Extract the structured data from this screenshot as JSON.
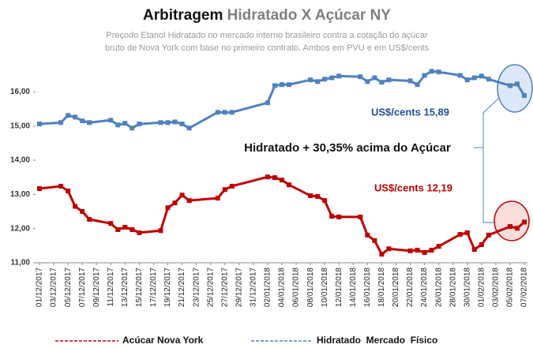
{
  "chart_data": {
    "type": "line",
    "title": "Arbitragem",
    "title_2": "Hidratado X Açúcar NY",
    "subtitle": [
      "Preçodo Etanol Hidratado no mercado interno brasileiro  contra a cotação do açúcar",
      "bruto de Nova York  com base no primeiro contrato. Ambos em PVU e em US$/cents"
    ],
    "x": [
      "01/12/2017",
      "04/12/2017",
      "05/12/2017",
      "06/12/2017",
      "07/12/2017",
      "08/12/2017",
      "11/12/2017",
      "12/12/2017",
      "13/12/2017",
      "14/12/2017",
      "15/12/2017",
      "18/12/2017",
      "19/12/2017",
      "20/12/2017",
      "21/12/2017",
      "22/12/2017",
      "26/12/2017",
      "27/12/2017",
      "28/12/2017",
      "02/01/2018",
      "03/01/2018",
      "04/01/2018",
      "05/01/2018",
      "08/01/2018",
      "09/01/2018",
      "10/01/2018",
      "11/01/2018",
      "12/01/2018",
      "15/01/2018",
      "16/01/2018",
      "17/01/2018",
      "18/01/2018",
      "19/01/2018",
      "22/01/2018",
      "23/01/2018",
      "24/01/2018",
      "25/01/2018",
      "26/01/2018",
      "29/01/2018",
      "30/01/2018",
      "31/01/2018",
      "01/02/2018",
      "02/02/2018",
      "05/02/2018",
      "06/02/2018",
      "07/02/2018"
    ],
    "xlim": [
      "01/12/2017",
      "07/02/2018"
    ],
    "xticks": [
      "01/12/2017",
      "03/12/2017",
      "05/12/2017",
      "07/12/2017",
      "09/12/2017",
      "11/12/2017",
      "13/12/2017",
      "15/12/2017",
      "17/12/2017",
      "19/12/2017",
      "21/12/2017",
      "23/12/2017",
      "25/12/2017",
      "27/12/2017",
      "29/12/2017",
      "31/12/2017",
      "02/01/2018",
      "04/01/2018",
      "06/01/2018",
      "08/01/2018",
      "10/01/2018",
      "12/01/2018",
      "14/01/2018",
      "16/01/2018",
      "18/01/2018",
      "20/01/2018",
      "22/01/2018",
      "24/01/2018",
      "26/01/2018",
      "28/01/2018",
      "30/01/2018",
      "01/02/2018",
      "03/02/2018",
      "05/02/2018",
      "07/02/2018"
    ],
    "series": [
      {
        "name": "Hidratado  Mercado  Físico",
        "color": "#4f81bd",
        "values": [
          15.06,
          15.1,
          15.31,
          15.26,
          15.15,
          15.1,
          15.17,
          15.03,
          15.08,
          14.94,
          15.06,
          15.1,
          15.1,
          15.12,
          15.06,
          14.94,
          15.4,
          15.4,
          15.4,
          15.68,
          16.18,
          16.21,
          16.21,
          16.35,
          16.3,
          16.37,
          16.41,
          16.46,
          16.44,
          16.3,
          16.41,
          16.28,
          16.35,
          16.32,
          16.21,
          16.48,
          16.6,
          16.58,
          16.48,
          16.35,
          16.41,
          16.46,
          16.37,
          16.18,
          16.23,
          15.89
        ]
      },
      {
        "name": "Acúcar Nova York",
        "color": "#c00000",
        "values": [
          13.17,
          13.24,
          13.1,
          12.65,
          12.5,
          12.27,
          12.15,
          11.97,
          12.04,
          11.97,
          11.88,
          11.94,
          12.61,
          12.75,
          12.98,
          12.82,
          12.89,
          13.14,
          13.24,
          13.51,
          13.49,
          13.42,
          13.28,
          12.96,
          12.94,
          12.82,
          12.36,
          12.34,
          12.34,
          11.81,
          11.65,
          11.25,
          11.41,
          11.35,
          11.37,
          11.3,
          11.37,
          11.48,
          11.83,
          11.88,
          11.39,
          11.53,
          11.81,
          12.06,
          12.01,
          12.19
        ]
      }
    ],
    "ylim": [
      11,
      16.7
    ],
    "yticks": [
      {
        "value": 11,
        "label": "11,00"
      },
      {
        "value": 12,
        "label": "12,00"
      },
      {
        "value": 13,
        "label": "13,00"
      },
      {
        "value": 14,
        "label": "14,00"
      },
      {
        "value": 15,
        "label": "15,00"
      },
      {
        "value": 16,
        "label": "16,00"
      }
    ],
    "grid": false,
    "annotations": [
      "US$/cents  15,89",
      "Hidratado + 30,35% acima do Açúcar",
      "US$/cents  12,19"
    ]
  }
}
